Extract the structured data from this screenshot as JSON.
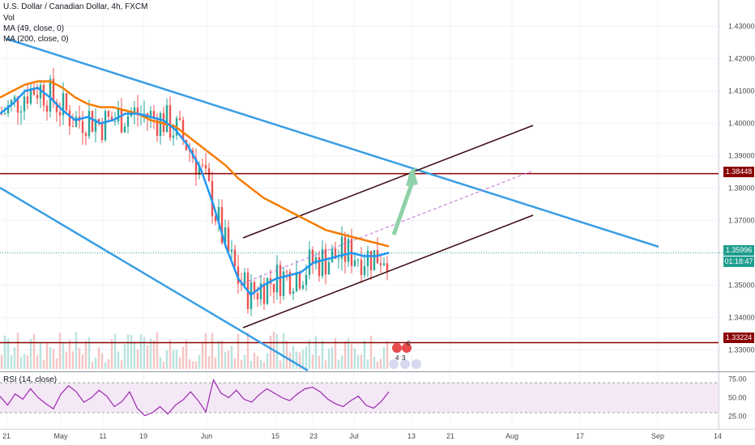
{
  "legend": {
    "symbol": "U.S. Dollar / Canadian Dollar, 4h, FXCM",
    "vol": "Vol",
    "ma49": "MA (49, close, 0)",
    "ma200": "MA (200, close, 0)",
    "rsi": "RSI (14, close)"
  },
  "badges": {
    "level_high": "1.38448",
    "current": "1.35996",
    "countdown": "01:18:47",
    "level_low": "1.33224",
    "events_count_a": "6",
    "events_count_b": "4",
    "events_count_c": "3"
  },
  "colors": {
    "candle_up": "#26a69a",
    "candle_down": "#ef5350",
    "ma49": "#2196f3",
    "ma200": "#f57c00",
    "trendline": "#3a9ee4",
    "channel": "#3b0a0f",
    "level": "#8b0000",
    "rsi_line": "#9c27b0",
    "arrow": "#8fd1a8"
  },
  "chart_data": [
    {
      "type": "candlestick",
      "title": "U.S. Dollar / Canadian Dollar, 4h, FXCM",
      "x_tick_labels": [
        "21",
        "May",
        "11",
        "19",
        "Jun",
        "15",
        "23",
        "Jul",
        "13",
        "21",
        "Aug",
        "17",
        "Sep",
        "14"
      ],
      "y_tick_labels": [
        "1.43000",
        "1.42000",
        "1.41000",
        "1.40000",
        "1.39000",
        "1.38000",
        "1.37000",
        "1.35000",
        "1.34000",
        "1.33000"
      ],
      "ylim": [
        1.328,
        1.436
      ],
      "series": [
        {
          "name": "MA (49, close, 0)",
          "values": [
            1.403,
            1.406,
            1.41,
            1.411,
            1.408,
            1.404,
            1.401,
            1.402,
            1.4,
            1.401,
            1.403,
            1.403,
            1.402,
            1.401,
            1.398,
            1.393,
            1.386,
            1.375,
            1.362,
            1.352,
            1.347,
            1.35,
            1.352,
            1.353,
            1.354,
            1.357,
            1.358,
            1.359,
            1.36,
            1.359,
            1.359,
            1.36
          ]
        },
        {
          "name": "MA (200, close, 0)",
          "values": [
            1.408,
            1.41,
            1.412,
            1.413,
            1.413,
            1.411,
            1.408,
            1.406,
            1.405,
            1.405,
            1.404,
            1.403,
            1.401,
            1.4,
            1.399,
            1.396,
            1.393,
            1.39,
            1.387,
            1.383,
            1.38,
            1.377,
            1.375,
            1.373,
            1.371,
            1.369,
            1.367,
            1.366,
            1.365,
            1.364,
            1.363,
            1.362
          ]
        }
      ],
      "levels": [
        1.38448,
        1.33224
      ],
      "current_price": 1.35996
    },
    {
      "type": "line",
      "title": "RSI (14, close)",
      "y_tick_labels": [
        "75.00",
        "50.00",
        "25.00"
      ],
      "ylim": [
        17,
        82
      ],
      "bands": [
        30,
        70
      ],
      "values": [
        52,
        40,
        55,
        48,
        62,
        50,
        42,
        35,
        55,
        66,
        58,
        44,
        50,
        60,
        52,
        38,
        45,
        58,
        36,
        26,
        30,
        38,
        28,
        40,
        47,
        58,
        46,
        31,
        74,
        56,
        50,
        60,
        48,
        44,
        54,
        62,
        56,
        50,
        46,
        55,
        62,
        64,
        58,
        48,
        42,
        38,
        46,
        52,
        40,
        36,
        45,
        58
      ]
    }
  ]
}
